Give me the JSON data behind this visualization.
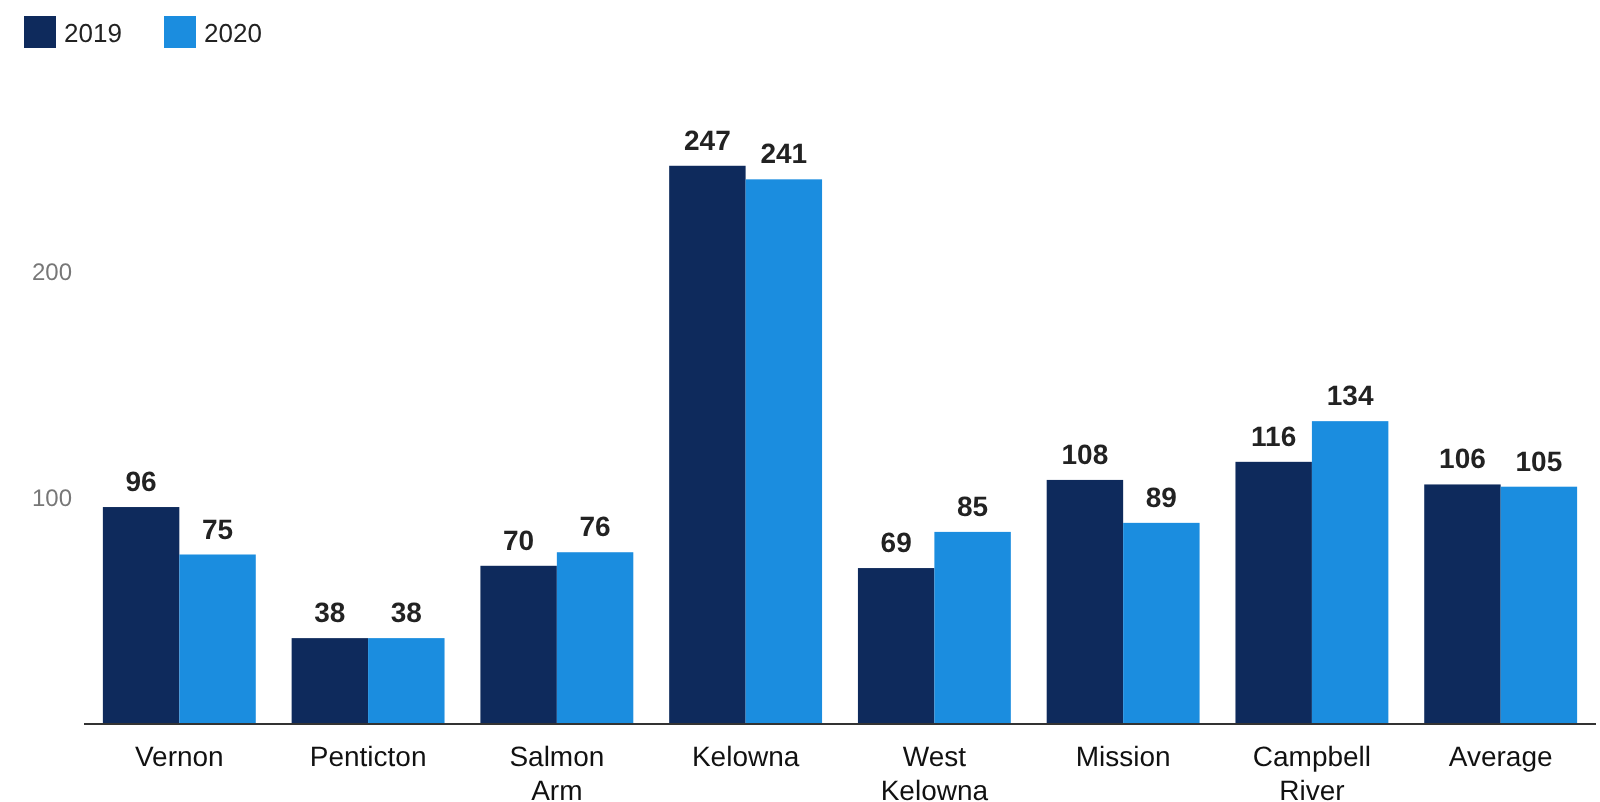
{
  "chart_data": {
    "type": "bar",
    "categories": [
      "Vernon",
      "Penticton",
      "Salmon Arm",
      "Kelowna",
      "West Kelowna",
      "Mission",
      "Campbell River",
      "Average"
    ],
    "series": [
      {
        "name": "2019",
        "color": "#0e2a5c",
        "values": [
          96,
          38,
          70,
          247,
          69,
          108,
          116,
          106
        ]
      },
      {
        "name": "2020",
        "color": "#1b8ddf",
        "values": [
          75,
          38,
          76,
          241,
          85,
          89,
          134,
          105
        ]
      }
    ],
    "ylim": [
      0,
      250
    ],
    "yticks": [
      100,
      200
    ],
    "grid": false,
    "legend": "top left",
    "data_labels": true
  }
}
